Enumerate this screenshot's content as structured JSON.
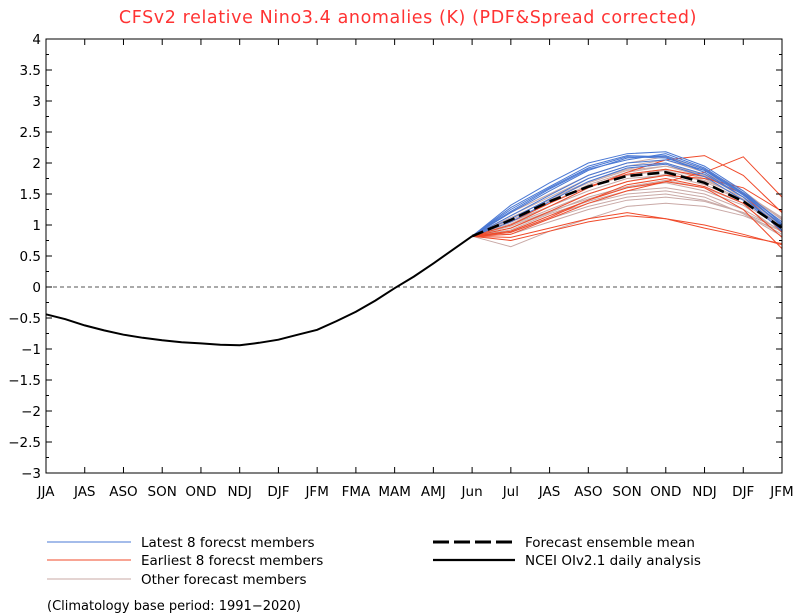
{
  "chart_data": {
    "type": "line",
    "title": "CFSv2 relative Nino3.4 anomalies (K) (PDF&Spread corrected)",
    "xlabel": "",
    "ylabel": "",
    "ylim": [
      -3,
      4
    ],
    "yticks": [
      "4",
      "3.5",
      "3",
      "2.5",
      "2",
      "1.5",
      "1",
      "0.5",
      "0",
      "−0.5",
      "−1",
      "−1.5",
      "−2",
      "−2.5",
      "−3"
    ],
    "ytick_values": [
      4,
      3.5,
      3,
      2.5,
      2,
      1.5,
      1,
      0.5,
      0,
      -0.5,
      -1,
      -1.5,
      -2,
      -2.5,
      -3
    ],
    "categories": [
      "JJA",
      "JAS",
      "ASO",
      "SON",
      "OND",
      "NDJ",
      "DJF",
      "JFM",
      "FMA",
      "MAM",
      "AMJ",
      "Jun",
      "Jul",
      "JAS",
      "ASO",
      "SON",
      "OND",
      "NDJ",
      "DJF",
      "JFM"
    ],
    "zero_line": true,
    "grid": false,
    "colors": {
      "title": "#ff3333",
      "latest": "#4a78d4",
      "earliest": "#f04a2a",
      "other": "#c9a9a6",
      "mean": "#000000",
      "analysis": "#000000",
      "zero": "#555555"
    },
    "analysis": {
      "name": "NCEI OIv2.1 daily analysis",
      "x": [
        0,
        0.5,
        1,
        1.5,
        2,
        2.5,
        3,
        3.5,
        4,
        4.5,
        5,
        5.5,
        6,
        6.5,
        7,
        7.5,
        8,
        8.5,
        9,
        9.5,
        10,
        10.5,
        11
      ],
      "values": [
        -0.44,
        -0.52,
        -0.62,
        -0.7,
        -0.77,
        -0.82,
        -0.86,
        -0.89,
        -0.91,
        -0.93,
        -0.94,
        -0.9,
        -0.85,
        -0.77,
        -0.69,
        -0.55,
        -0.4,
        -0.22,
        -0.02,
        0.17,
        0.38,
        0.6,
        0.82
      ]
    },
    "forecast_x": [
      11,
      12,
      13,
      14,
      15,
      16,
      17,
      18,
      19
    ],
    "ensemble_mean": {
      "name": "Forecast ensemble mean",
      "values": [
        0.82,
        1.08,
        1.38,
        1.62,
        1.79,
        1.85,
        1.68,
        1.38,
        0.95
      ]
    },
    "other_members": {
      "name": "Other forecast members",
      "series": [
        [
          0.82,
          0.95,
          1.2,
          1.45,
          1.62,
          1.72,
          1.6,
          1.35,
          0.95
        ],
        [
          0.82,
          1.05,
          1.3,
          1.55,
          1.75,
          1.8,
          1.65,
          1.4,
          0.98
        ],
        [
          0.82,
          0.65,
          0.9,
          1.1,
          1.3,
          1.35,
          1.3,
          1.15,
          0.9
        ],
        [
          0.82,
          1.15,
          1.45,
          1.75,
          1.95,
          2.05,
          1.85,
          1.5,
          1.05
        ],
        [
          0.82,
          0.88,
          1.1,
          1.3,
          1.45,
          1.5,
          1.4,
          1.2,
          0.85
        ],
        [
          0.82,
          1.1,
          1.42,
          1.7,
          1.9,
          2.0,
          1.8,
          1.45,
          1.0
        ],
        [
          0.82,
          1.0,
          1.25,
          1.5,
          1.7,
          1.82,
          1.72,
          1.45,
          1.02
        ],
        [
          0.82,
          0.92,
          1.18,
          1.38,
          1.55,
          1.6,
          1.5,
          1.25,
          0.9
        ],
        [
          0.82,
          1.2,
          1.5,
          1.8,
          2.0,
          2.1,
          1.9,
          1.55,
          1.08
        ],
        [
          0.82,
          1.02,
          1.3,
          1.6,
          1.82,
          1.9,
          1.75,
          1.42,
          0.96
        ],
        [
          0.82,
          0.98,
          1.22,
          1.42,
          1.6,
          1.68,
          1.55,
          1.32,
          0.88
        ],
        [
          0.82,
          1.12,
          1.4,
          1.68,
          1.88,
          1.95,
          1.78,
          1.5,
          1.1
        ],
        [
          0.82,
          0.9,
          1.15,
          1.35,
          1.5,
          1.55,
          1.45,
          1.18,
          0.82
        ],
        [
          0.82,
          1.08,
          1.36,
          1.62,
          1.8,
          1.88,
          1.7,
          1.4,
          1.0
        ],
        [
          0.82,
          1.05,
          1.35,
          1.65,
          1.85,
          1.95,
          1.82,
          1.52,
          1.12
        ],
        [
          0.82,
          0.85,
          1.05,
          1.25,
          1.4,
          1.45,
          1.38,
          1.2,
          0.92
        ]
      ]
    },
    "latest_members": {
      "name": "Latest 8 forecst members",
      "series": [
        [
          0.82,
          1.2,
          1.55,
          1.88,
          2.08,
          2.12,
          1.9,
          1.5,
          1.0
        ],
        [
          0.82,
          1.28,
          1.62,
          1.95,
          2.12,
          2.1,
          1.85,
          1.45,
          0.9
        ],
        [
          0.82,
          1.15,
          1.48,
          1.8,
          2.0,
          2.05,
          1.88,
          1.52,
          1.05
        ],
        [
          0.82,
          1.32,
          1.68,
          2.0,
          2.15,
          2.18,
          1.95,
          1.55,
          1.02
        ],
        [
          0.82,
          1.1,
          1.42,
          1.75,
          1.95,
          2.0,
          1.82,
          1.45,
          0.95
        ],
        [
          0.82,
          1.22,
          1.58,
          1.9,
          2.05,
          2.15,
          1.92,
          1.52,
          0.98
        ],
        [
          0.82,
          1.05,
          1.38,
          1.7,
          1.92,
          1.98,
          1.78,
          1.4,
          0.92
        ],
        [
          0.82,
          1.25,
          1.6,
          1.92,
          2.1,
          2.08,
          1.88,
          1.48,
          1.0
        ]
      ]
    },
    "earliest_members": {
      "name": "Earliest 8 forecst members",
      "series": [
        [
          0.82,
          0.8,
          0.95,
          1.1,
          1.2,
          1.1,
          0.95,
          0.82,
          0.7
        ],
        [
          0.82,
          0.85,
          1.1,
          1.35,
          1.55,
          1.7,
          1.85,
          2.1,
          1.45
        ],
        [
          0.82,
          1.0,
          1.3,
          1.6,
          1.85,
          2.05,
          2.12,
          1.8,
          1.2
        ],
        [
          0.82,
          0.9,
          1.15,
          1.4,
          1.6,
          1.7,
          1.6,
          1.25,
          0.62
        ],
        [
          0.82,
          0.75,
          0.9,
          1.05,
          1.15,
          1.1,
          1.0,
          0.85,
          0.68
        ],
        [
          0.82,
          0.95,
          1.22,
          1.5,
          1.7,
          1.8,
          1.75,
          1.6,
          1.22
        ],
        [
          0.82,
          1.05,
          1.35,
          1.62,
          1.82,
          1.9,
          1.78,
          1.5,
          0.88
        ],
        [
          0.82,
          0.88,
          1.12,
          1.4,
          1.65,
          1.75,
          1.62,
          1.35,
          0.8
        ]
      ]
    },
    "footnote": "(Climatology base period: 1991−2020)"
  }
}
